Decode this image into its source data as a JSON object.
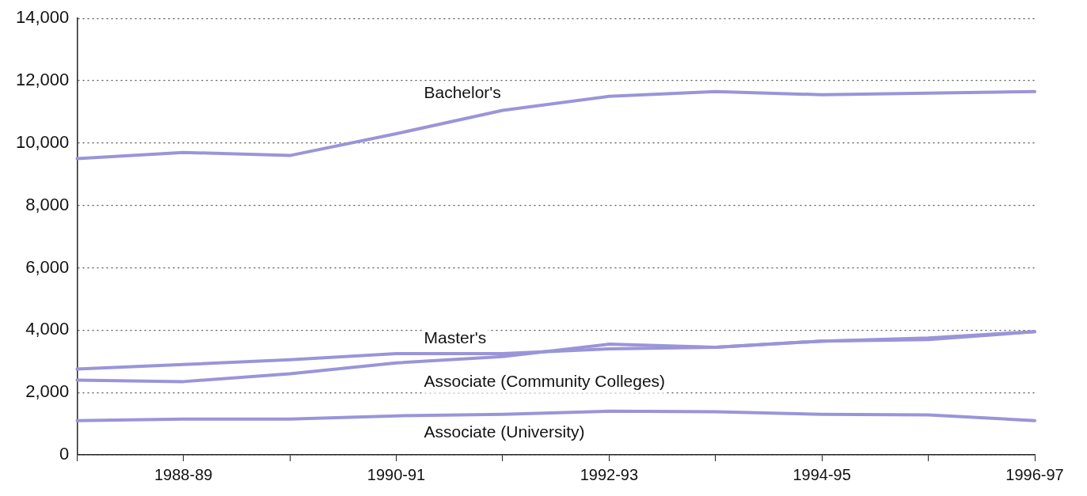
{
  "chart_data": {
    "type": "line",
    "categories": [
      null,
      "1988-89",
      null,
      "1990-91",
      null,
      "1992-93",
      null,
      "1994-95",
      null,
      "1996-97"
    ],
    "series": [
      {
        "name": "Bachelor's",
        "color": "#9a95d9",
        "values": [
          9500,
          9700,
          9600,
          10300,
          11050,
          11500,
          11650,
          11550,
          11600,
          11650
        ]
      },
      {
        "name": "Master's",
        "color": "#9a95d9",
        "values": [
          2750,
          2900,
          3050,
          3250,
          3250,
          3400,
          3450,
          3650,
          3750,
          3950
        ]
      },
      {
        "name": "Associate (Community Colleges)",
        "color": "#9a95d9",
        "values": [
          2400,
          2350,
          2600,
          2950,
          3150,
          3550,
          3450,
          3650,
          3700,
          3950
        ]
      },
      {
        "name": "Associate (University)",
        "color": "#9a95d9",
        "values": [
          1100,
          1150,
          1150,
          1250,
          1300,
          1400,
          1380,
          1300,
          1280,
          1100
        ]
      }
    ],
    "ylim": [
      0,
      14000
    ],
    "yticks": [
      0,
      {
        "value": 2000,
        "label": "2,000"
      },
      {
        "value": 4000,
        "label": "4,000"
      },
      {
        "value": 6000,
        "label": "6,000"
      },
      {
        "value": 8000,
        "label": "8,000"
      },
      {
        "value": 10000,
        "label": "10,000"
      },
      {
        "value": 12000,
        "label": "12,000"
      },
      {
        "value": 14000,
        "label": "14,000"
      }
    ],
    "grid": "y",
    "legend": false,
    "marker": "none",
    "line_style": "solid"
  }
}
